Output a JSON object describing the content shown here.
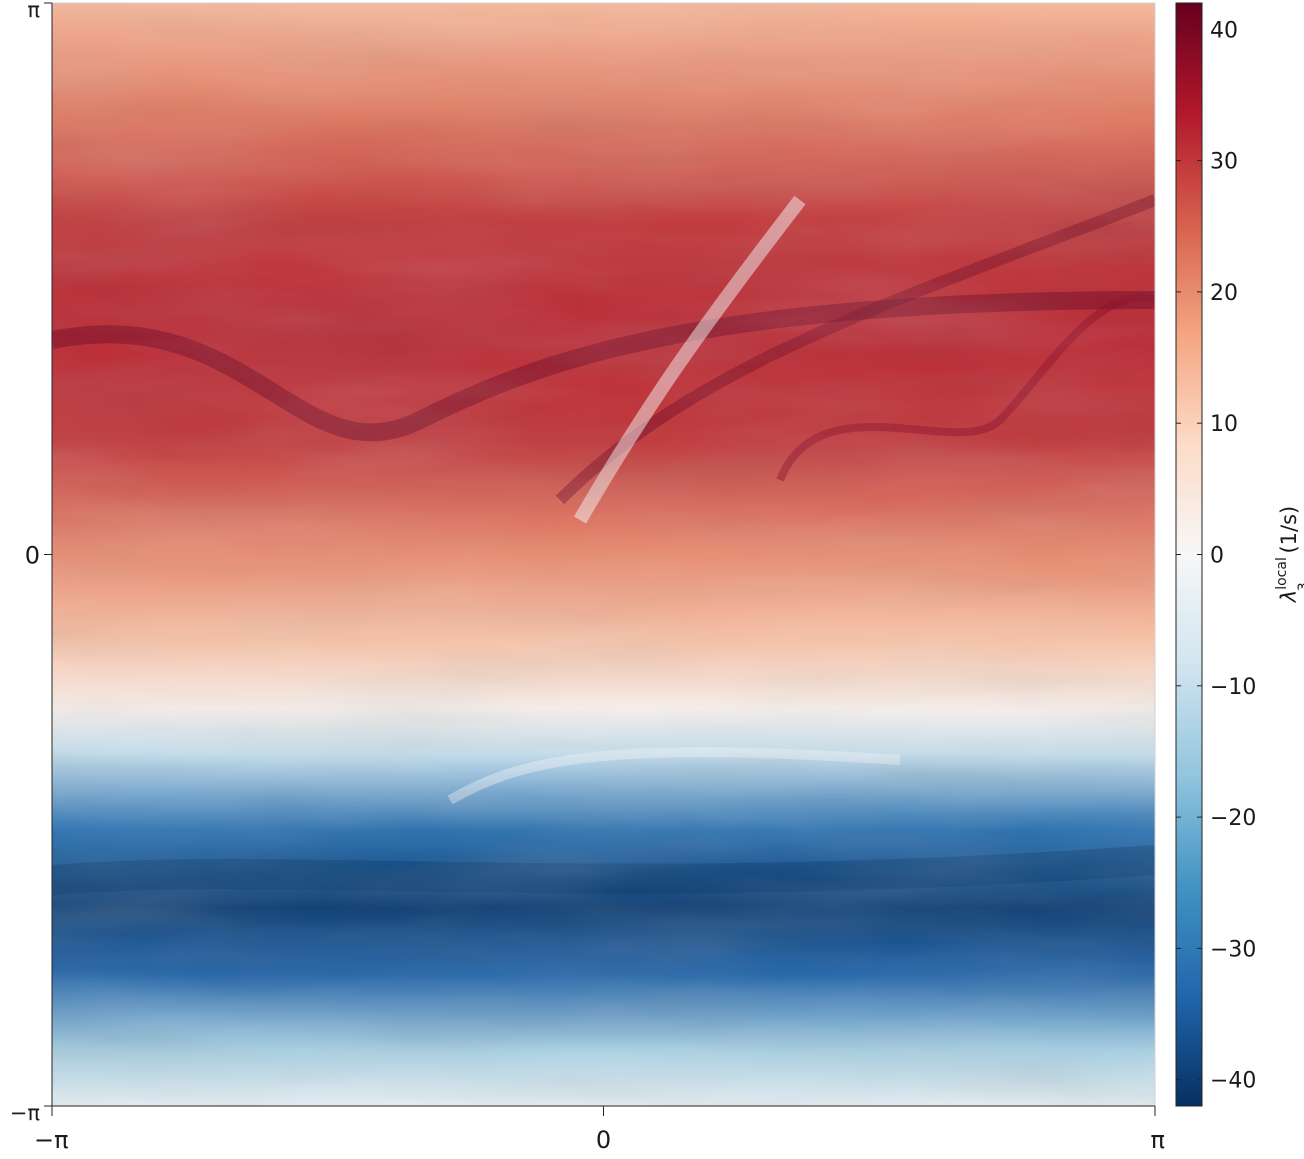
{
  "chart_data": {
    "type": "heatmap",
    "title": "",
    "xlabel": "",
    "ylabel": "",
    "x_tick_labels": [
      "−π",
      "0",
      "π"
    ],
    "y_tick_labels": [
      "−π",
      "0",
      "π"
    ],
    "xlim": [
      -3.14159,
      3.14159
    ],
    "ylim": [
      -3.14159,
      3.14159
    ],
    "grid": false,
    "colorbar": {
      "label": "λ",
      "label_sub": "3",
      "label_sup": "local",
      "label_unit": " (1/s)",
      "ticks": [
        40,
        30,
        20,
        10,
        0,
        -10,
        -20,
        -30,
        -40
      ],
      "tick_labels": [
        "40",
        "30",
        "20",
        "10",
        "0",
        "−10",
        "−20",
        "−30",
        "−40"
      ],
      "range": [
        -42,
        42
      ],
      "colormap": "diverging red-white-blue",
      "colors": [
        "#053061",
        "#2166ac",
        "#4393c3",
        "#92c5de",
        "#d1e5f0",
        "#f7f7f7",
        "#fddbc7",
        "#f4a582",
        "#d6604d",
        "#b2182b",
        "#67001f"
      ]
    },
    "field_summary": {
      "y_fractions": [
        0.0,
        0.1,
        0.2,
        0.3,
        0.4,
        0.5,
        0.58,
        0.64,
        0.68,
        0.75,
        0.82,
        0.88,
        0.95,
        1.0
      ],
      "mean_values": [
        14,
        22,
        30,
        32,
        30,
        20,
        12,
        2,
        -10,
        -32,
        -40,
        -34,
        -14,
        -4
      ]
    }
  }
}
